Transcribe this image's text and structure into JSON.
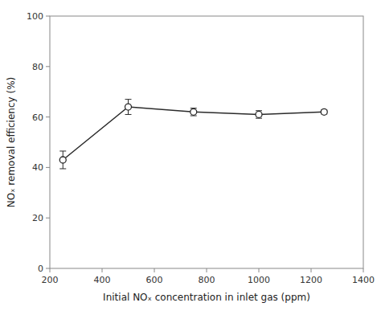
{
  "chart_data": {
    "type": "line",
    "x": [
      250,
      500,
      750,
      1000,
      1250
    ],
    "values": [
      43,
      64,
      62,
      61,
      62
    ],
    "errors": [
      3.5,
      3.0,
      1.5,
      1.5,
      0.8
    ],
    "xlim": [
      200,
      1400
    ],
    "ylim": [
      0,
      100
    ],
    "xticks": [
      200,
      400,
      600,
      800,
      1000,
      1200,
      1400
    ],
    "yticks": [
      0,
      20,
      40,
      60,
      80,
      100
    ],
    "color": "#2b2b2b",
    "marker": "circle",
    "grid": false,
    "xlabel": "Initial NOₓ concentration in inlet gas (ppm)",
    "ylabel": "NOₓ removal efficiency (%)"
  }
}
